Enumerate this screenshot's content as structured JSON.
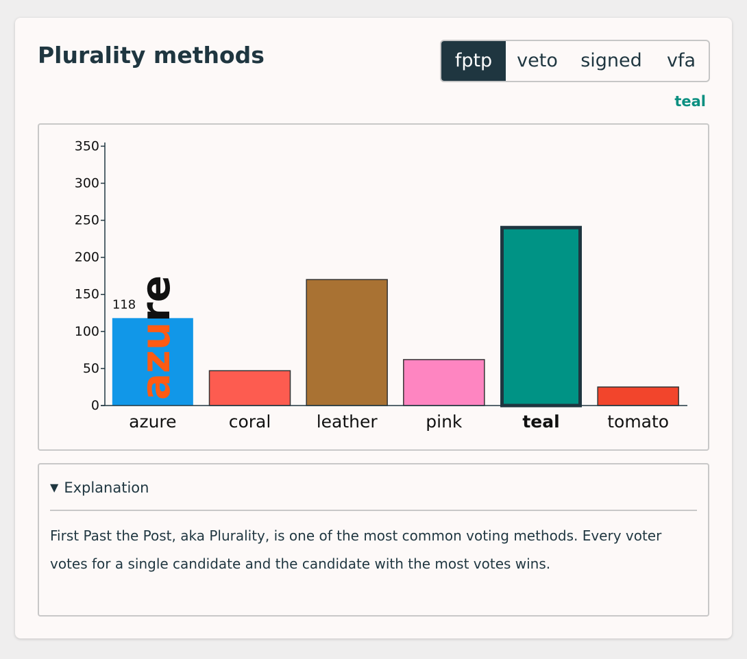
{
  "header": {
    "title": "Plurality methods",
    "tabs": [
      {
        "label": "fptp",
        "active": true
      },
      {
        "label": "veto",
        "active": false
      },
      {
        "label": "signed",
        "active": false
      },
      {
        "label": "vfa",
        "active": false
      }
    ],
    "winner_label": "teal"
  },
  "chart_data": {
    "type": "bar",
    "categories": [
      "azure",
      "coral",
      "leather",
      "pink",
      "teal",
      "tomato"
    ],
    "values": [
      118,
      47,
      170,
      62,
      242,
      25
    ],
    "colors": [
      "#1197e8",
      "#fd5c50",
      "#a97233",
      "#fe85c1",
      "#009385",
      "#f2452c"
    ],
    "highlighted": "teal",
    "hovered": "azure",
    "hover_value_label": "118",
    "hover_overlay_text": "azure",
    "yticks": [
      0,
      50,
      100,
      150,
      200,
      250,
      300,
      350
    ],
    "ylim": [
      0,
      355
    ],
    "grid": false
  },
  "explanation": {
    "summary": "Explanation",
    "text": "First Past the Post, aka Plurality, is one of the most common voting methods. Every voter votes for a single candidate and the candidate with the most votes wins."
  }
}
